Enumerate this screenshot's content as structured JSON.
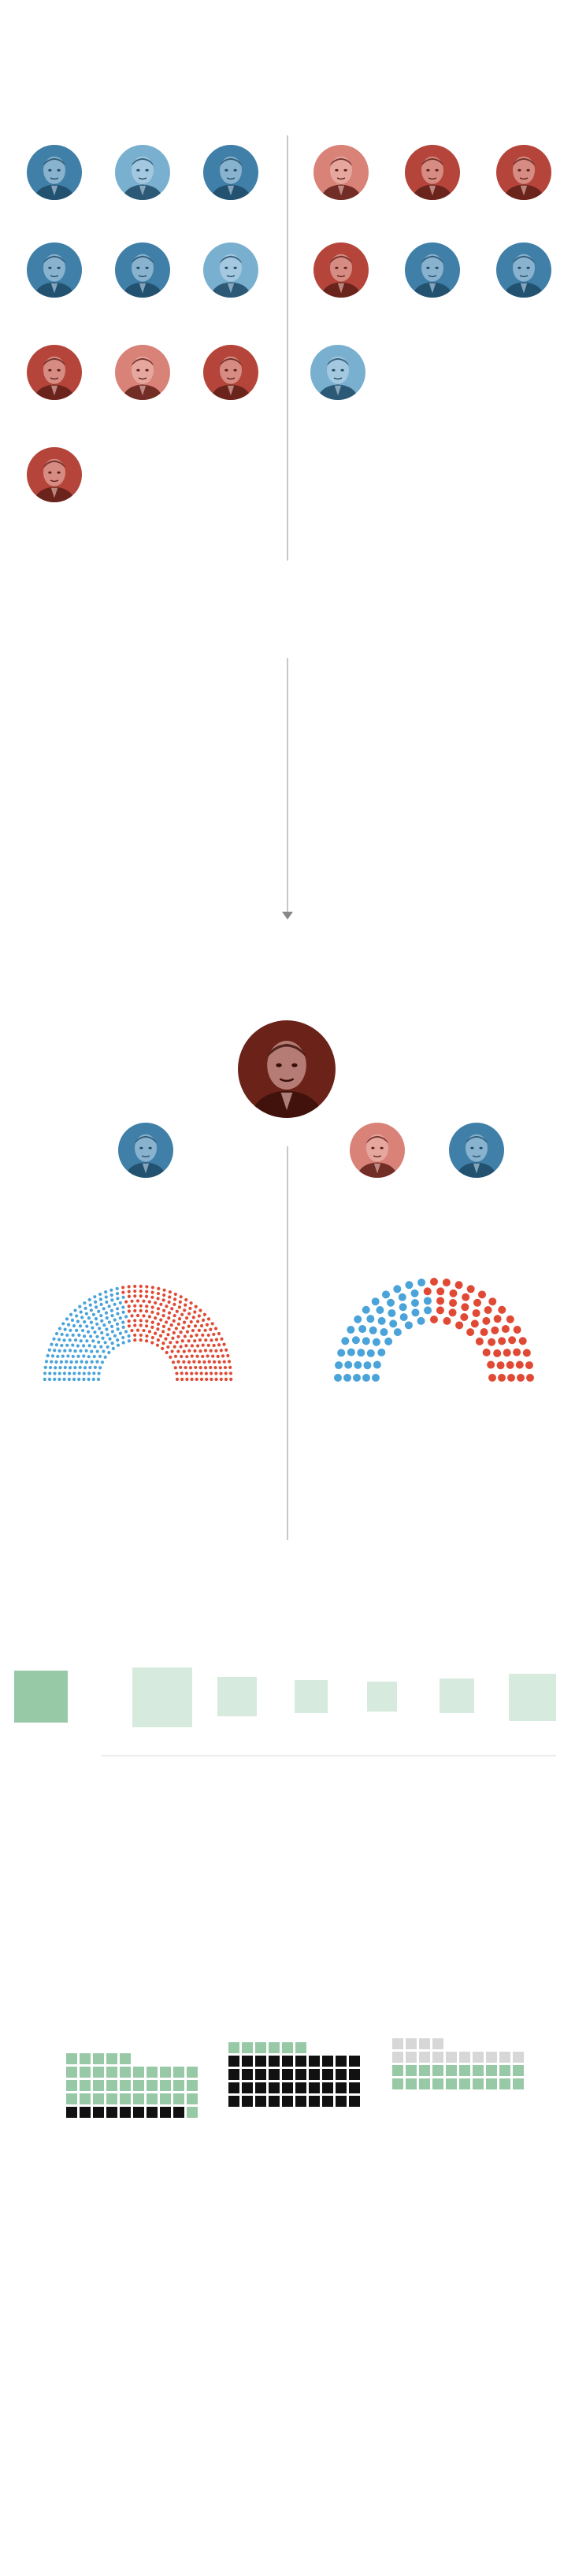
{
  "colors": {
    "dem": "#3f7fa8",
    "dem_light": "#7ab0cf",
    "gop": "#b5453a",
    "gop_light": "#d98278",
    "gop_dark": "#7a2a22",
    "trump": "#6b2319",
    "seat_dem": "#4aa3d9",
    "seat_gop": "#e04a35",
    "green_dark": "#98c9a6",
    "green_light": "#d6ebdd",
    "waffle_black": "#111111",
    "waffle_green": "#98c9a6",
    "waffle_grey": "#d7d7d7"
  },
  "portraits": {
    "section_one": [
      {
        "id": "p1",
        "party": "dem",
        "icon": "portrait-icon"
      },
      {
        "id": "p2",
        "party": "dem_light",
        "icon": "portrait-icon"
      },
      {
        "id": "p3",
        "party": "dem",
        "icon": "portrait-icon"
      },
      {
        "id": "p4",
        "party": "gop_light",
        "icon": "portrait-icon"
      },
      {
        "id": "p5",
        "party": "gop",
        "icon": "portrait-icon"
      },
      {
        "id": "p6",
        "party": "gop",
        "icon": "portrait-icon"
      },
      {
        "id": "p7",
        "party": "dem",
        "icon": "portrait-icon"
      },
      {
        "id": "p8",
        "party": "dem",
        "icon": "portrait-icon"
      },
      {
        "id": "p9",
        "party": "dem_light",
        "icon": "portrait-icon"
      },
      {
        "id": "p10",
        "party": "gop",
        "icon": "portrait-icon"
      },
      {
        "id": "p11",
        "party": "dem",
        "icon": "portrait-icon"
      },
      {
        "id": "p12",
        "party": "dem",
        "icon": "portrait-icon"
      },
      {
        "id": "p13",
        "party": "gop",
        "icon": "portrait-icon"
      },
      {
        "id": "p14",
        "party": "gop_light",
        "icon": "portrait-icon"
      },
      {
        "id": "p15",
        "party": "gop",
        "icon": "portrait-icon"
      },
      {
        "id": "p16",
        "party": "dem_light",
        "icon": "portrait-icon"
      },
      {
        "id": "p17",
        "party": "gop",
        "icon": "portrait-icon"
      }
    ],
    "leaders": [
      {
        "id": "trump",
        "party": "trump",
        "icon": "portrait-icon"
      },
      {
        "id": "house-dem-leader",
        "party": "dem",
        "icon": "portrait-icon"
      },
      {
        "id": "senate-gop-leader",
        "party": "gop_light",
        "icon": "portrait-icon"
      },
      {
        "id": "senate-dem-leader",
        "party": "dem",
        "icon": "portrait-icon"
      }
    ]
  },
  "chambers": {
    "house": {
      "total": 435,
      "dem": 194,
      "gop": 241
    },
    "senate": {
      "total": 100,
      "dem": 48,
      "gop": 52
    }
  },
  "squares": [
    {
      "id": "sq1",
      "shade": "green_dark"
    },
    {
      "id": "sq2",
      "shade": "green_light"
    },
    {
      "id": "sq3",
      "shade": "green_light"
    },
    {
      "id": "sq4",
      "shade": "green_light"
    },
    {
      "id": "sq5",
      "shade": "green_light"
    },
    {
      "id": "sq6",
      "shade": "green_light"
    },
    {
      "id": "sq7",
      "shade": "green_light"
    }
  ],
  "waffles": [
    {
      "id": "waffle-1",
      "green": 36,
      "black": 9,
      "grey": 0
    },
    {
      "id": "waffle-2",
      "green": 6,
      "black": 40,
      "grey": 0
    },
    {
      "id": "waffle-3",
      "green": 20,
      "black": 0,
      "grey": 14
    }
  ]
}
